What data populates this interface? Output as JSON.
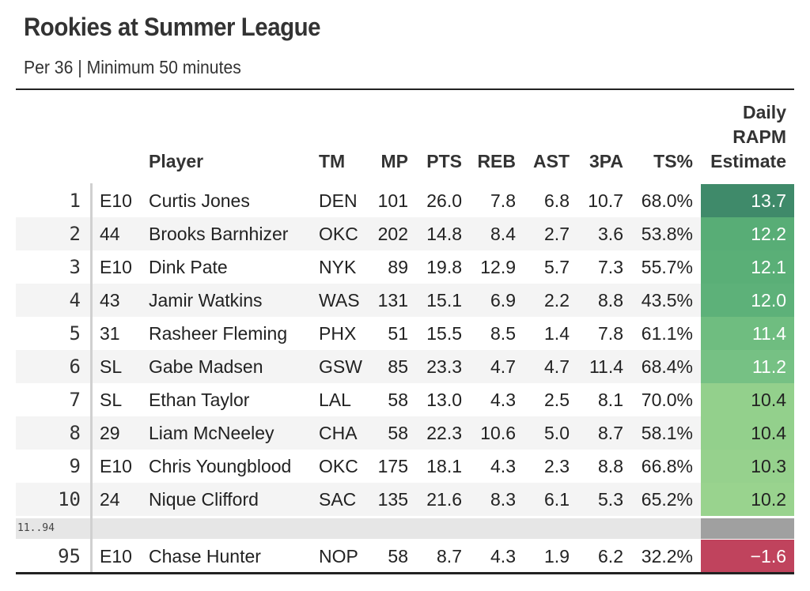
{
  "title": "Rookies at Summer League",
  "subtitle": "Per 36 | Minimum 50 minutes",
  "headers": {
    "player": "Player",
    "tm": "TM",
    "mp": "MP",
    "pts": "PTS",
    "reb": "REB",
    "ast": "AST",
    "tpa": "3PA",
    "ts": "TS%",
    "rapm_line1": "Daily",
    "rapm_line2": "RAPM",
    "rapm_line3": "Estimate"
  },
  "gap_label": "11..94",
  "chart_data": {
    "type": "table",
    "title": "Rookies at Summer League",
    "subtitle": "Per 36 | Minimum 50 minutes",
    "columns": [
      "",
      "",
      "Player",
      "TM",
      "MP",
      "PTS",
      "REB",
      "AST",
      "3PA",
      "TS%",
      "Daily RAPM Estimate"
    ],
    "rows": [
      {
        "rank": "1",
        "pick": "E10",
        "player": "Curtis Jones",
        "tm": "DEN",
        "mp": "101",
        "pts": "26.0",
        "reb": "7.8",
        "ast": "6.8",
        "tpa": "10.7",
        "ts": "68.0%",
        "rapm": "13.7",
        "rapm_value": 13.7,
        "rapm_color": "#3f8a6a",
        "rapm_text_color": "#ffffff"
      },
      {
        "rank": "2",
        "pick": "44",
        "player": "Brooks Barnhizer",
        "tm": "OKC",
        "mp": "202",
        "pts": "14.8",
        "reb": "8.4",
        "ast": "2.7",
        "tpa": "3.6",
        "ts": "53.8%",
        "rapm": "12.2",
        "rapm_value": 12.2,
        "rapm_color": "#58ad76",
        "rapm_text_color": "#ffffff"
      },
      {
        "rank": "3",
        "pick": "E10",
        "player": "Dink Pate",
        "tm": "NYK",
        "mp": "89",
        "pts": "19.8",
        "reb": "12.9",
        "ast": "5.7",
        "tpa": "7.3",
        "ts": "55.7%",
        "rapm": "12.1",
        "rapm_value": 12.1,
        "rapm_color": "#5aaf77",
        "rapm_text_color": "#ffffff"
      },
      {
        "rank": "4",
        "pick": "43",
        "player": "Jamir Watkins",
        "tm": "WAS",
        "mp": "131",
        "pts": "15.1",
        "reb": "6.9",
        "ast": "2.2",
        "tpa": "8.8",
        "ts": "43.5%",
        "rapm": "12.0",
        "rapm_value": 12.0,
        "rapm_color": "#5db179",
        "rapm_text_color": "#ffffff"
      },
      {
        "rank": "5",
        "pick": "31",
        "player": "Rasheer Fleming",
        "tm": "PHX",
        "mp": "51",
        "pts": "15.5",
        "reb": "8.5",
        "ast": "1.4",
        "tpa": "7.8",
        "ts": "61.1%",
        "rapm": "11.4",
        "rapm_value": 11.4,
        "rapm_color": "#6fbd80",
        "rapm_text_color": "#ffffff"
      },
      {
        "rank": "6",
        "pick": "SL",
        "player": "Gabe Madsen",
        "tm": "GSW",
        "mp": "85",
        "pts": "23.3",
        "reb": "4.7",
        "ast": "4.7",
        "tpa": "11.4",
        "ts": "68.4%",
        "rapm": "11.2",
        "rapm_value": 11.2,
        "rapm_color": "#76c184",
        "rapm_text_color": "#ffffff"
      },
      {
        "rank": "7",
        "pick": "SL",
        "player": "Ethan Taylor",
        "tm": "LAL",
        "mp": "58",
        "pts": "13.0",
        "reb": "4.3",
        "ast": "2.5",
        "tpa": "8.1",
        "ts": "70.0%",
        "rapm": "10.4",
        "rapm_value": 10.4,
        "rapm_color": "#93d08c",
        "rapm_text_color": "#222222"
      },
      {
        "rank": "8",
        "pick": "29",
        "player": "Liam McNeeley",
        "tm": "CHA",
        "mp": "58",
        "pts": "22.3",
        "reb": "10.6",
        "ast": "5.0",
        "tpa": "8.7",
        "ts": "58.1%",
        "rapm": "10.4",
        "rapm_value": 10.4,
        "rapm_color": "#93d08c",
        "rapm_text_color": "#222222"
      },
      {
        "rank": "9",
        "pick": "E10",
        "player": "Chris Youngblood",
        "tm": "OKC",
        "mp": "175",
        "pts": "18.1",
        "reb": "4.3",
        "ast": "2.3",
        "tpa": "8.8",
        "ts": "66.8%",
        "rapm": "10.3",
        "rapm_value": 10.3,
        "rapm_color": "#96d18d",
        "rapm_text_color": "#222222"
      },
      {
        "rank": "10",
        "pick": "24",
        "player": "Nique Clifford",
        "tm": "SAC",
        "mp": "135",
        "pts": "21.6",
        "reb": "8.3",
        "ast": "6.1",
        "tpa": "5.3",
        "ts": "65.2%",
        "rapm": "10.2",
        "rapm_value": 10.2,
        "rapm_color": "#99d38e",
        "rapm_text_color": "#222222"
      }
    ],
    "last_row": {
      "rank": "95",
      "pick": "E10",
      "player": "Chase Hunter",
      "tm": "NOP",
      "mp": "58",
      "pts": "8.7",
      "reb": "4.3",
      "ast": "1.9",
      "tpa": "6.2",
      "ts": "32.2%",
      "rapm": "−1.6",
      "rapm_value": -1.6,
      "rapm_color": "#c0435d",
      "rapm_text_color": "#ffffff"
    },
    "gap_color": "#a0a0a0"
  }
}
